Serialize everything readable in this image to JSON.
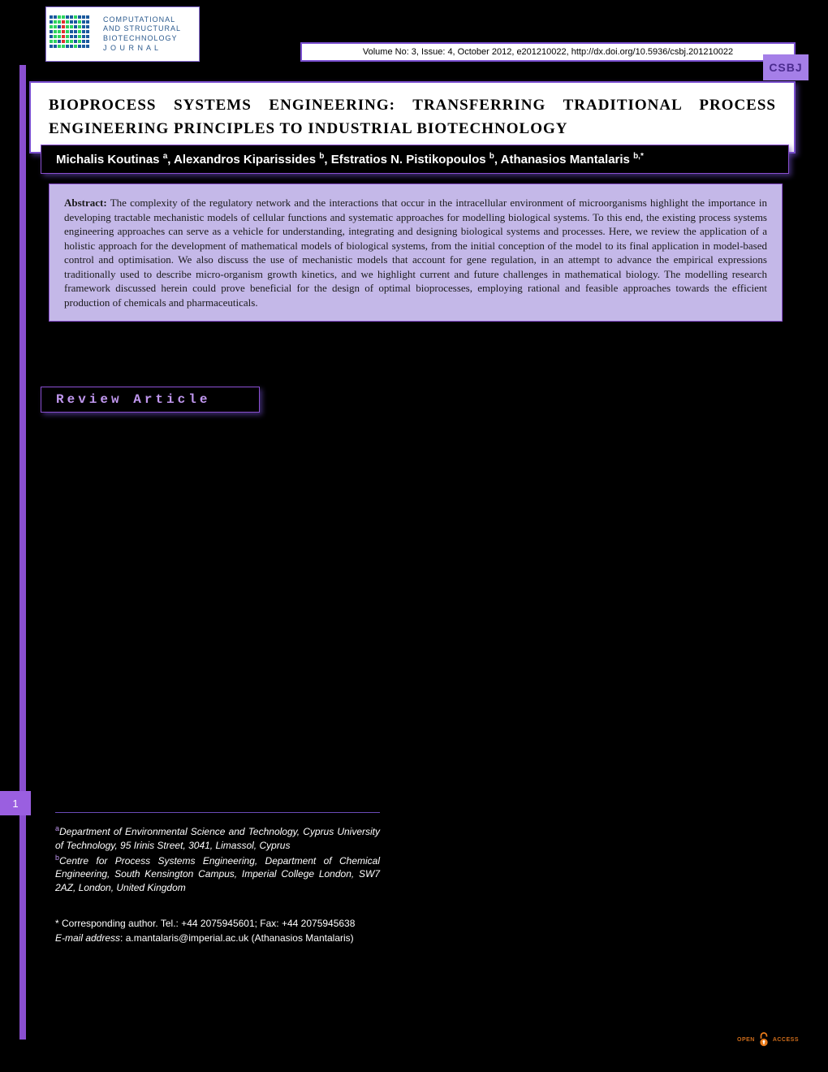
{
  "journal": {
    "name_line1": "COMPUTATIONAL",
    "name_line2": "AND STRUCTURAL",
    "name_line3": "BIOTECHNOLOGY",
    "name_line4": "J O U R N A L",
    "abbrev": "CSBJ",
    "logo_colors": [
      "#1a5a9e",
      "#2dd35e",
      "#e03030"
    ]
  },
  "citation": "Volume No: 3, Issue: 4, October 2012, e201210022, http://dx.doi.org/10.5936/csbj.201210022",
  "title": "Bioprocess systems engineering: transferring traditional process engineering principles to industrial biotechnology",
  "authors_html": "Michalis Koutinas <sup>a</sup>, Alexandros Kiparissides <sup>b</sup>, Efstratios N. Pistikopoulos <sup>b</sup>, Athanasios Mantalaris <sup>b,*</sup>",
  "abstract": {
    "label": "Abstract:",
    "text": "The complexity of the regulatory network and the interactions that occur in the intracellular environment of microorganisms highlight the importance in developing tractable mechanistic models of cellular functions and systematic approaches for modelling biological systems. To this end, the existing process systems engineering approaches can serve as a vehicle for understanding, integrating and designing biological systems and processes. Here, we review the application of a holistic approach for the development of mathematical models of biological systems, from the initial conception of the model to its final application in model-based control and optimisation. We also discuss the use of mechanistic models that account for gene regulation, in an attempt to advance the empirical expressions traditionally used to describe micro-organism growth kinetics, and we highlight current and future challenges in mathematical biology. The modelling research framework discussed herein could prove beneficial for the design of optimal bioprocesses, employing rational and feasible approaches towards the efficient production of chemicals and pharmaceuticals."
  },
  "article_type": "Review Article",
  "page_number": "1",
  "affiliations": {
    "a": "Department of Environmental Science and Technology, Cyprus University of Technology, 95 Irinis Street, 3041, Limassol, Cyprus",
    "b": "Centre for Process Systems Engineering, Department of Chemical Engineering, South Kensington Campus, Imperial College London, SW7 2AZ, London, United Kingdom"
  },
  "corresponding": {
    "line": "* Corresponding author. Tel.: +44 2075945601; Fax: +44 2075945638",
    "email_label": "E-mail address",
    "email": "a.mantalaris@imperial.ac.uk (Athanasios Mantalaris)"
  },
  "open_access": {
    "text1": "OPEN",
    "text2": "ACCESS",
    "icon_color": "#e87a1a"
  },
  "colors": {
    "page_bg": "#000000",
    "accent_purple": "#8a4fd0",
    "abstract_bg": "#c4b8e8",
    "review_text": "#c097ef",
    "page_tab": "#9a5fe0"
  },
  "typography": {
    "title_fontsize": 19,
    "citation_fontsize": 11,
    "authors_fontsize": 15,
    "abstract_fontsize": 13,
    "review_fontsize": 16,
    "footer_fontsize": 12
  }
}
